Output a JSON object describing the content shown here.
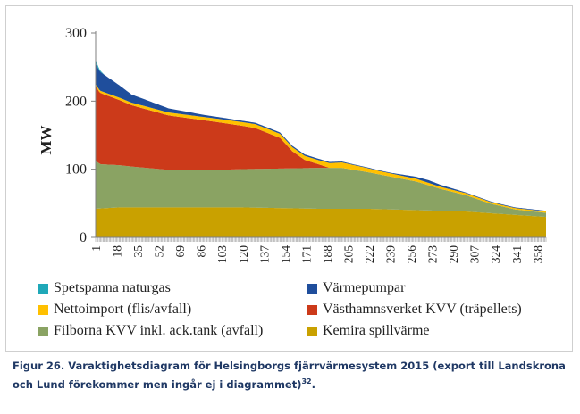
{
  "chart_data": {
    "type": "area",
    "stacked": true,
    "ylabel": "MW",
    "ylim": [
      0,
      300
    ],
    "yticks": [
      0,
      100,
      200,
      300
    ],
    "xlim": [
      1,
      365
    ],
    "xticks": [
      1,
      18,
      35,
      52,
      69,
      86,
      103,
      120,
      137,
      154,
      171,
      188,
      205,
      222,
      239,
      256,
      273,
      290,
      307,
      324,
      341,
      358
    ],
    "legend_position": "bottom",
    "series": [
      {
        "name": "Kemira spillvärme",
        "color": "#c9a100",
        "x": [
          1,
          20,
          60,
          120,
          180,
          220,
          260,
          300,
          340,
          365
        ],
        "y": [
          42,
          44,
          44,
          44,
          42,
          42,
          40,
          38,
          33,
          30
        ]
      },
      {
        "name": "Filborna KVV inkl. ack.tank (avfall)",
        "color": "#8aa363",
        "x": [
          1,
          5,
          30,
          60,
          100,
          150,
          180,
          200,
          220,
          240,
          260,
          280,
          300,
          320,
          340,
          365
        ],
        "y": [
          70,
          65,
          60,
          55,
          55,
          58,
          60,
          60,
          54,
          48,
          42,
          32,
          24,
          14,
          8,
          6
        ]
      },
      {
        "name": "Västhamnsverket KVV (träpellets)",
        "color": "#cc3a1a",
        "x": [
          1,
          4,
          30,
          60,
          100,
          130,
          150,
          160,
          170,
          180,
          190,
          365
        ],
        "y": [
          110,
          105,
          90,
          80,
          70,
          60,
          45,
          25,
          12,
          6,
          0,
          0
        ]
      },
      {
        "name": "Nettoimport (flis/avfall)",
        "color": "#ffc000",
        "x": [
          1,
          40,
          100,
          140,
          180,
          200,
          230,
          260,
          280,
          300,
          330,
          365
        ],
        "y": [
          3,
          4,
          5,
          6,
          6,
          8,
          5,
          4,
          3,
          3,
          2,
          2
        ]
      },
      {
        "name": "Värmepumpar",
        "color": "#1f4e9c",
        "x": [
          1,
          30,
          60,
          90,
          120,
          150,
          180,
          210,
          240,
          270,
          300,
          340,
          365
        ],
        "y": [
          30,
          12,
          6,
          3,
          2,
          2,
          2,
          1,
          1,
          4,
          1,
          1,
          1
        ]
      },
      {
        "name": "Spetspanna naturgas",
        "color": "#1fa8b8",
        "x": [
          1,
          3,
          8,
          365
        ],
        "y": [
          6,
          3,
          0,
          0
        ]
      }
    ]
  },
  "caption": {
    "text": "Figur 26. Varaktighetsdiagram för Helsingborgs fjärrvärmesystem 2015 (export till Landskrona och Lund förekommer men ingår ej i diagrammet)",
    "sup": "32",
    "end": "."
  }
}
